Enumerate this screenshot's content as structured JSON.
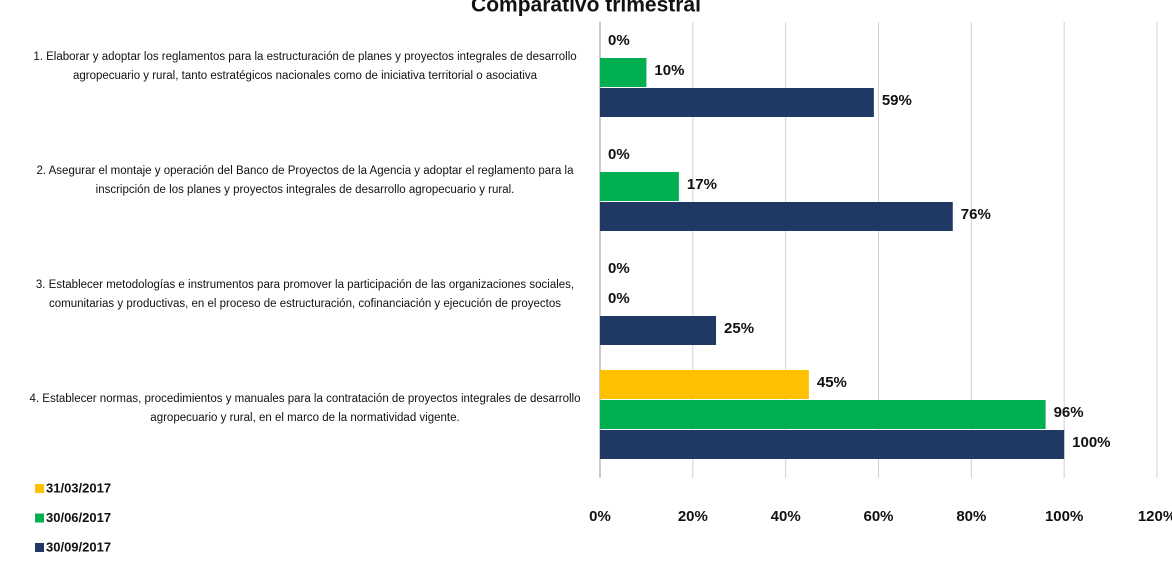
{
  "chart_data": {
    "type": "barh",
    "title": "Comparativo trimestral",
    "categories": [
      "1. Elaborar y adoptar los reglamentos para la estructuración de planes y proyectos integrales de desarrollo agropecuario y rural, tanto estratégicos nacionales como de iniciativa territorial o asociativa",
      "2. Asegurar el montaje y operación del Banco de Proyectos de la Agencia y adoptar el reglamento para la inscripción de los planes y proyectos integrales de desarrollo agropecuario y rural.",
      "3. Establecer metodologías e instrumentos para promover la participación de las organizaciones sociales, comunitarias y productivas, en el proceso de estructuración, cofinanciación y ejecución de proyectos",
      "4. Establecer normas, procedimientos y manuales para la contratación de proyectos integrales de desarrollo agropecuario y rural, en el marco de la normatividad vigente."
    ],
    "series": [
      {
        "name": "31/03/2017",
        "color": "#ffc000",
        "values": [
          0,
          0,
          0,
          45
        ],
        "value_labels": [
          "0%",
          "0%",
          "0%",
          "45%"
        ]
      },
      {
        "name": "30/06/2017",
        "color": "#00b050",
        "values": [
          10,
          17,
          0,
          96
        ],
        "value_labels": [
          "10%",
          "17%",
          "0%",
          "96%"
        ]
      },
      {
        "name": "30/09/2017",
        "color": "#1f3864",
        "values": [
          59,
          76,
          25,
          100
        ],
        "value_labels": [
          "59%",
          "76%",
          "25%",
          "100%"
        ]
      }
    ],
    "xlim": [
      0,
      120
    ],
    "xticks": [
      {
        "value": 0,
        "label": "0%"
      },
      {
        "value": 20,
        "label": "20%"
      },
      {
        "value": 40,
        "label": "40%"
      },
      {
        "value": 60,
        "label": "60%"
      },
      {
        "value": 80,
        "label": "80%"
      },
      {
        "value": 100,
        "label": "100%"
      },
      {
        "value": 120,
        "label": "120%"
      }
    ],
    "grid": true,
    "legend": "lower left"
  }
}
